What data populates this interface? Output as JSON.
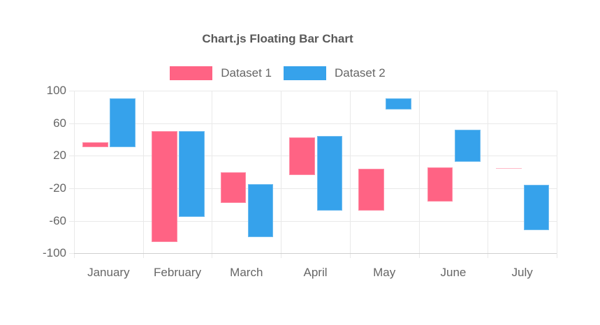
{
  "title": "Chart.js Floating Bar Chart",
  "legend": {
    "items": [
      {
        "label": "Dataset 1",
        "color": "#ff6384"
      },
      {
        "label": "Dataset 2",
        "color": "#36a2eb"
      }
    ]
  },
  "colors": {
    "dataset1": "#ff6384",
    "dataset2": "#36a2eb",
    "grid": "#e9e9e9",
    "axis_border": "#cfcfcf",
    "text": "#666666",
    "title_text": "#595959"
  },
  "chart_data": {
    "type": "bar",
    "variant": "floating-bar",
    "title": "Chart.js Floating Bar Chart",
    "categories": [
      "January",
      "February",
      "March",
      "April",
      "May",
      "June",
      "July"
    ],
    "series": [
      {
        "name": "Dataset 1",
        "color": "#ff6384",
        "values": [
          [
            31,
            37
          ],
          [
            -86,
            50
          ],
          [
            -38,
            0
          ],
          [
            -4,
            43
          ],
          [
            -47,
            4
          ],
          [
            -36,
            6
          ],
          [
            4,
            5
          ]
        ]
      },
      {
        "name": "Dataset 2",
        "color": "#36a2eb",
        "values": [
          [
            31,
            91
          ],
          [
            -55,
            50
          ],
          [
            -80,
            -15
          ],
          [
            -47,
            44
          ],
          [
            77,
            91
          ],
          [
            13,
            52
          ],
          [
            -71,
            -16
          ]
        ]
      }
    ],
    "xlabel": "",
    "ylabel": "",
    "ylim": [
      -100,
      100
    ],
    "yticks": [
      100,
      60,
      20,
      -20,
      -60,
      -100
    ],
    "grid": true,
    "legend_position": "top"
  }
}
